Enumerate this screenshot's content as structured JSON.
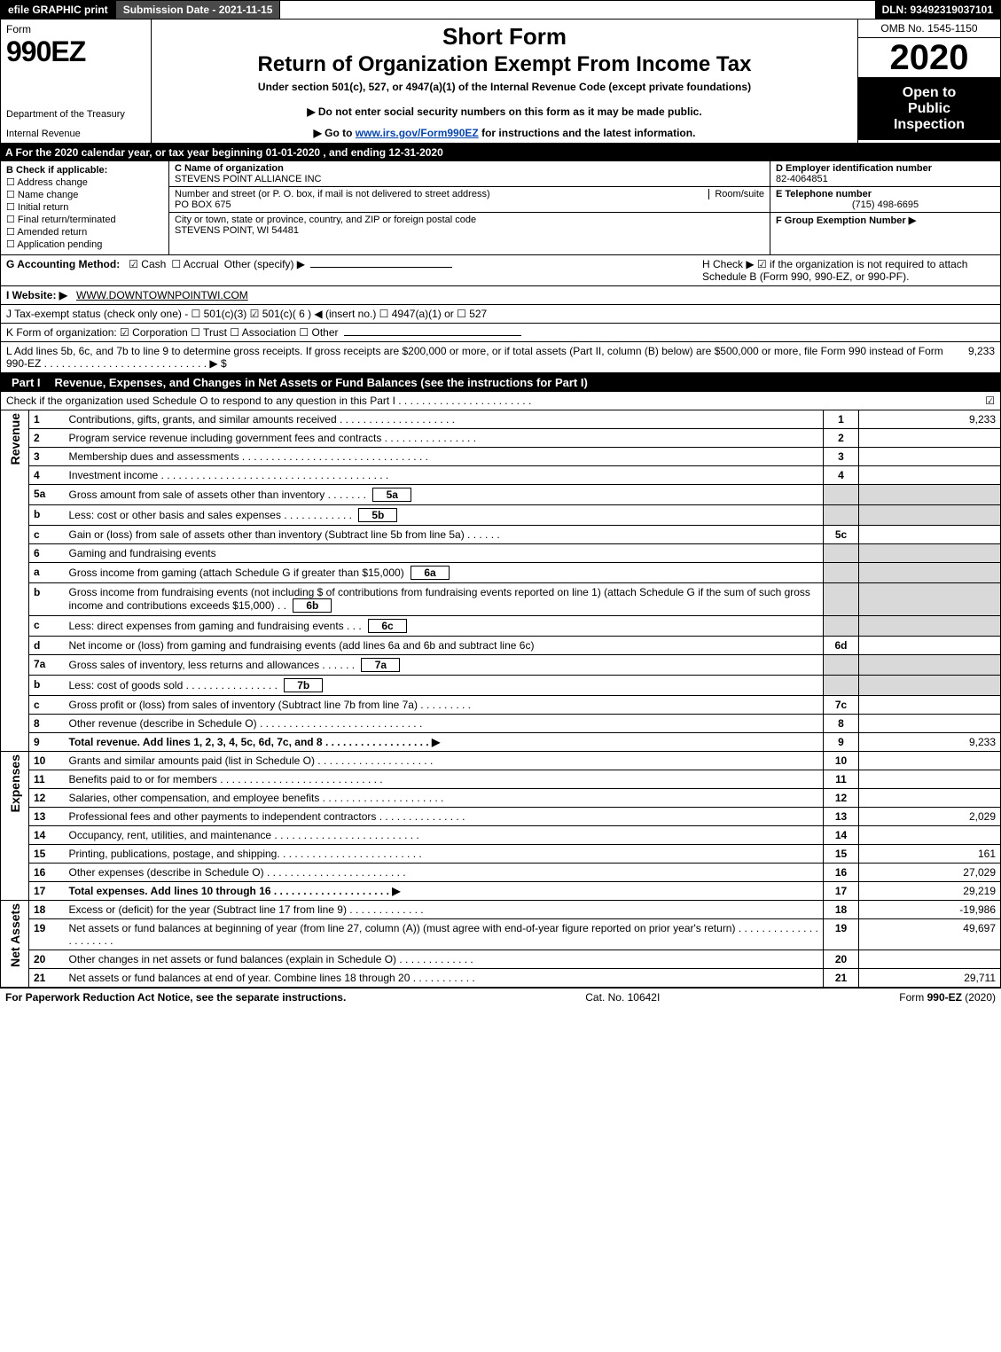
{
  "colors": {
    "black": "#000000",
    "white": "#ffffff",
    "darkgrey": "#4a4a4a",
    "lightgrey": "#d9d9d9",
    "link": "#0645ad"
  },
  "topbar": {
    "efile": "efile GRAPHIC print",
    "submission_label": "Submission Date - 2021-11-15",
    "dln": "DLN: 93492319037101"
  },
  "header": {
    "form_word": "Form",
    "form_number": "990EZ",
    "dept1": "Department of the Treasury",
    "dept2": "Internal Revenue",
    "short": "Short Form",
    "return_title": "Return of Organization Exempt From Income Tax",
    "under": "Under section 501(c), 527, or 4947(a)(1) of the Internal Revenue Code (except private foundations)",
    "notice": "▶ Do not enter social security numbers on this form as it may be made public.",
    "goto_pre": "▶ Go to ",
    "goto_link": "www.irs.gov/Form990EZ",
    "goto_post": " for instructions and the latest information.",
    "omb": "OMB No. 1545-1150",
    "year": "2020",
    "open1": "Open to",
    "open2": "Public",
    "open3": "Inspection"
  },
  "lineA": "A   For the 2020 calendar year, or tax year beginning 01-01-2020 , and ending 12-31-2020",
  "colB": {
    "header": "B  Check if applicable:",
    "items": [
      {
        "label": "Address change",
        "checked": false
      },
      {
        "label": "Name change",
        "checked": false
      },
      {
        "label": "Initial return",
        "checked": false
      },
      {
        "label": "Final return/terminated",
        "checked": false
      },
      {
        "label": "Amended return",
        "checked": false
      },
      {
        "label": "Application pending",
        "checked": false
      }
    ]
  },
  "colC": {
    "c_label": "C Name of organization",
    "c_name": "STEVENS POINT ALLIANCE INC",
    "addr_label": "Number and street (or P. O. box, if mail is not delivered to street address)",
    "room_label": "Room/suite",
    "addr": "PO BOX 675",
    "city_label": "City or town, state or province, country, and ZIP or foreign postal code",
    "city": "STEVENS POINT, WI  54481"
  },
  "colD": {
    "d_label": "D Employer identification number",
    "ein": "82-4064851",
    "e_label": "E Telephone number",
    "phone": "(715) 498-6695",
    "f_label": "F Group Exemption Number   ▶"
  },
  "lineG": {
    "label": "G Accounting Method:",
    "cash": "☑ Cash",
    "accrual": "☐ Accrual",
    "other": "Other (specify) ▶",
    "h_text": "H  Check ▶ ☑ if the organization is not required to attach Schedule B (Form 990, 990-EZ, or 990-PF)."
  },
  "lineI": {
    "label": "I Website: ▶",
    "site": "WWW.DOWNTOWNPOINTWI.COM"
  },
  "lineJ": "J Tax-exempt status (check only one) - ☐ 501(c)(3)  ☑ 501(c)( 6 ) ◀ (insert no.)  ☐ 4947(a)(1) or  ☐ 527",
  "lineK": "K Form of organization:  ☑ Corporation  ☐ Trust  ☐ Association  ☐ Other",
  "lineL": {
    "text": "L Add lines 5b, 6c, and 7b to line 9 to determine gross receipts. If gross receipts are $200,000 or more, or if total assets (Part II, column (B) below) are $500,000 or more, file Form 990 instead of Form 990-EZ  . . . . . . . . . . . . . . . . . . . . . . . . . . . . ▶ $ ",
    "amount": "9,233"
  },
  "partI": {
    "tag": "Part I",
    "title": "Revenue, Expenses, and Changes in Net Assets or Fund Balances (see the instructions for Part I)",
    "sub": "Check if the organization used Schedule O to respond to any question in this Part I . . . . . . . . . . . . . . . . . . . . . . ."
  },
  "side": {
    "revenue": "Revenue",
    "expenses": "Expenses",
    "netassets": "Net Assets"
  },
  "revenue_rows": [
    {
      "n": "1",
      "desc": "Contributions, gifts, grants, and similar amounts received . . . . . . . . . . . . . . . . . . . .",
      "box": "1",
      "val": "9,233"
    },
    {
      "n": "2",
      "desc": "Program service revenue including government fees and contracts . . . . . . . . . . . . . . . .",
      "box": "2",
      "val": ""
    },
    {
      "n": "3",
      "desc": "Membership dues and assessments . . . . . . . . . . . . . . . . . . . . . . . . . . . . . . . .",
      "box": "3",
      "val": ""
    },
    {
      "n": "4",
      "desc": "Investment income . . . . . . . . . . . . . . . . . . . . . . . . . . . . . . . . . . . . . . .",
      "box": "4",
      "val": ""
    },
    {
      "n": "5a",
      "desc": "Gross amount from sale of assets other than inventory . . . . . . .",
      "inner": "5a",
      "box": "",
      "val": "",
      "grey": true
    },
    {
      "n": "b",
      "desc": "Less: cost or other basis and sales expenses . . . . . . . . . . . .",
      "inner": "5b",
      "box": "",
      "val": "",
      "grey": true
    },
    {
      "n": "c",
      "desc": "Gain or (loss) from sale of assets other than inventory (Subtract line 5b from line 5a) . . . . . .",
      "box": "5c",
      "val": ""
    },
    {
      "n": "6",
      "desc": "Gaming and fundraising events",
      "box": "",
      "val": "",
      "grey": true
    },
    {
      "n": "a",
      "desc": "Gross income from gaming (attach Schedule G if greater than $15,000)",
      "inner": "6a",
      "box": "",
      "val": "",
      "grey": true
    },
    {
      "n": "b",
      "desc": "Gross income from fundraising events (not including $                 of contributions from fundraising events reported on line 1) (attach Schedule G if the sum of such gross income and contributions exceeds $15,000)   . .",
      "inner": "6b",
      "box": "",
      "val": "",
      "grey": true
    },
    {
      "n": "c",
      "desc": "Less: direct expenses from gaming and fundraising events   . . .",
      "inner": "6c",
      "box": "",
      "val": "",
      "grey": true
    },
    {
      "n": "d",
      "desc": "Net income or (loss) from gaming and fundraising events (add lines 6a and 6b and subtract line 6c)",
      "box": "6d",
      "val": ""
    },
    {
      "n": "7a",
      "desc": "Gross sales of inventory, less returns and allowances . . . . . .",
      "inner": "7a",
      "box": "",
      "val": "",
      "grey": true
    },
    {
      "n": "b",
      "desc": "Less: cost of goods sold      . . . . . . . . . . . . . . . .",
      "inner": "7b",
      "box": "",
      "val": "",
      "grey": true
    },
    {
      "n": "c",
      "desc": "Gross profit or (loss) from sales of inventory (Subtract line 7b from line 7a) . . . . . . . . .",
      "box": "7c",
      "val": ""
    },
    {
      "n": "8",
      "desc": "Other revenue (describe in Schedule O) . . . . . . . . . . . . . . . . . . . . . . . . . . . .",
      "box": "8",
      "val": ""
    },
    {
      "n": "9",
      "desc": "Total revenue. Add lines 1, 2, 3, 4, 5c, 6d, 7c, and 8  . . . . . . . . . . . . . . . . . .   ▶",
      "box": "9",
      "val": "9,233",
      "bold": true
    }
  ],
  "expense_rows": [
    {
      "n": "10",
      "desc": "Grants and similar amounts paid (list in Schedule O) . . . . . . . . . . . . . . . . . . . .",
      "box": "10",
      "val": ""
    },
    {
      "n": "11",
      "desc": "Benefits paid to or for members     . . . . . . . . . . . . . . . . . . . . . . . . . . . .",
      "box": "11",
      "val": ""
    },
    {
      "n": "12",
      "desc": "Salaries, other compensation, and employee benefits . . . . . . . . . . . . . . . . . . . . .",
      "box": "12",
      "val": ""
    },
    {
      "n": "13",
      "desc": "Professional fees and other payments to independent contractors . . . . . . . . . . . . . . .",
      "box": "13",
      "val": "2,029"
    },
    {
      "n": "14",
      "desc": "Occupancy, rent, utilities, and maintenance . . . . . . . . . . . . . . . . . . . . . . . . .",
      "box": "14",
      "val": ""
    },
    {
      "n": "15",
      "desc": "Printing, publications, postage, and shipping. . . . . . . . . . . . . . . . . . . . . . . . .",
      "box": "15",
      "val": "161"
    },
    {
      "n": "16",
      "desc": "Other expenses (describe in Schedule O)     . . . . . . . . . . . . . . . . . . . . . . . .",
      "box": "16",
      "val": "27,029"
    },
    {
      "n": "17",
      "desc": "Total expenses. Add lines 10 through 16    . . . . . . . . . . . . . . . . . . . .   ▶",
      "box": "17",
      "val": "29,219",
      "bold": true
    }
  ],
  "net_rows": [
    {
      "n": "18",
      "desc": "Excess or (deficit) for the year (Subtract line 17 from line 9)     . . . . . . . . . . . . .",
      "box": "18",
      "val": "-19,986"
    },
    {
      "n": "19",
      "desc": "Net assets or fund balances at beginning of year (from line 27, column (A)) (must agree with end-of-year figure reported on prior year's return) . . . . . . . . . . . . . . . . . . . . . .",
      "box": "19",
      "val": "49,697"
    },
    {
      "n": "20",
      "desc": "Other changes in net assets or fund balances (explain in Schedule O) . . . . . . . . . . . . .",
      "box": "20",
      "val": ""
    },
    {
      "n": "21",
      "desc": "Net assets or fund balances at end of year. Combine lines 18 through 20 . . . . . . . . . . .",
      "box": "21",
      "val": "29,711"
    }
  ],
  "footer": {
    "left": "For Paperwork Reduction Act Notice, see the separate instructions.",
    "mid": "Cat. No. 10642I",
    "right": "Form 990-EZ (2020)"
  }
}
